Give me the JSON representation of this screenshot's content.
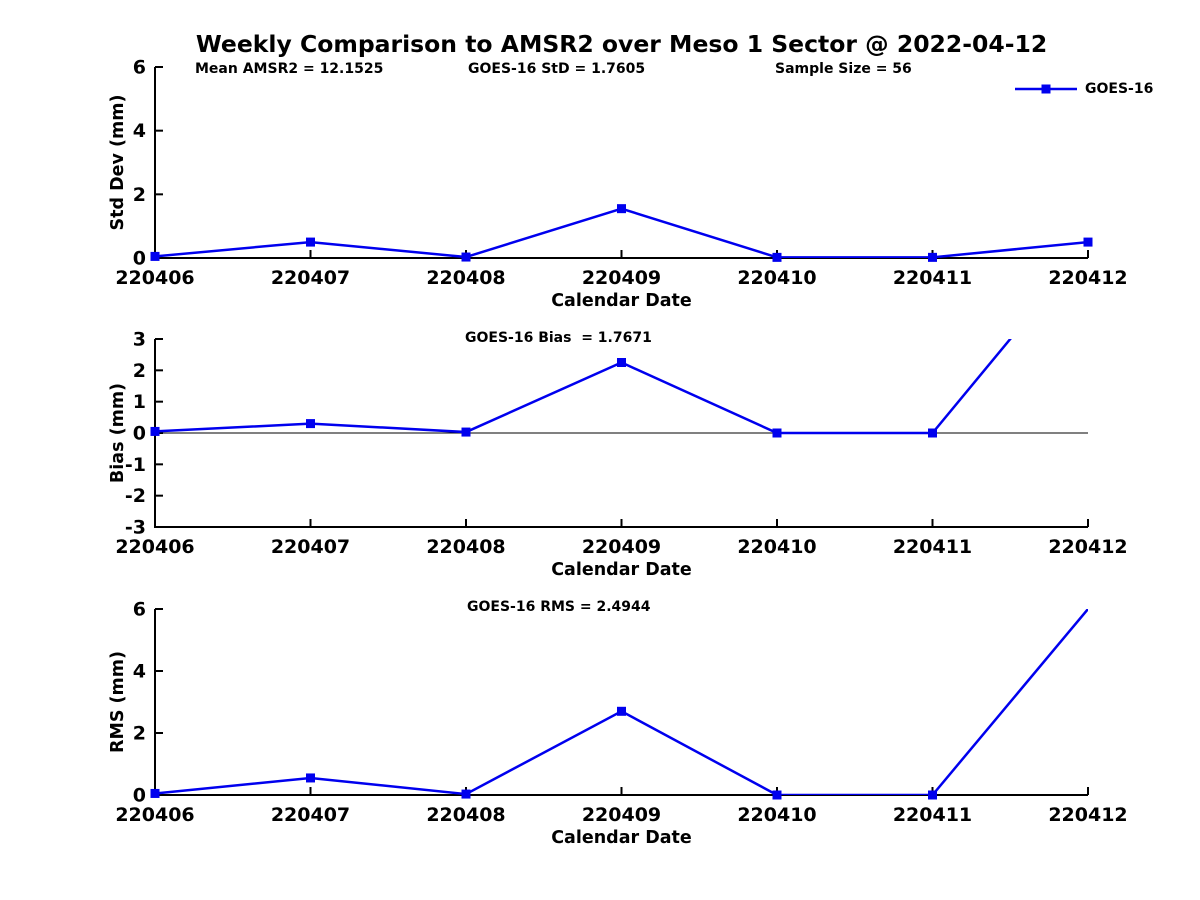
{
  "title": "Weekly Comparison to AMSR2 over Meso 1 Sector @ 2022-04-12",
  "legend": {
    "label": "GOES-16",
    "series_color": "#0000ee"
  },
  "colors": {
    "line": "#0000ee",
    "axis": "#000000",
    "text": "#000000",
    "background": "#ffffff"
  },
  "chart_data": [
    {
      "type": "line",
      "panel": "std-dev",
      "annotations": [
        "Mean AMSR2 = 12.1525",
        "GOES-16 StD = 1.7605",
        "Sample Size = 56"
      ],
      "ylabel": "Std Dev (mm)",
      "xlabel": "Calendar Date",
      "categories": [
        "220406",
        "220407",
        "220408",
        "220409",
        "220410",
        "220411",
        "220412"
      ],
      "series": [
        {
          "name": "GOES-16",
          "color": "#0000ee",
          "values": [
            0.05,
            0.5,
            0.03,
            1.55,
            0.02,
            0.02,
            0.5
          ]
        }
      ],
      "ylim": [
        0,
        6
      ],
      "yticks": [
        0,
        2,
        4,
        6
      ],
      "zero_line": false,
      "grid": false,
      "legend_position": "top-right"
    },
    {
      "type": "line",
      "panel": "bias",
      "annotations": [
        "GOES-16 Bias  = 1.7671"
      ],
      "ylabel": "Bias (mm)",
      "xlabel": "Calendar Date",
      "categories": [
        "220406",
        "220407",
        "220408",
        "220409",
        "220410",
        "220411",
        "220412"
      ],
      "series": [
        {
          "name": "GOES-16",
          "color": "#0000ee",
          "values": [
            0.05,
            0.3,
            0.03,
            2.25,
            0.0,
            0.0,
            6.0
          ]
        }
      ],
      "ylim": [
        -3,
        3
      ],
      "yticks": [
        -3,
        -2,
        -1,
        0,
        1,
        2,
        3
      ],
      "zero_line": true,
      "grid": false,
      "note": "last point exceeds y-range and is clipped at top"
    },
    {
      "type": "line",
      "panel": "rms",
      "annotations": [
        "GOES-16 RMS = 2.4944"
      ],
      "ylabel": "RMS (mm)",
      "xlabel": "Calendar Date",
      "categories": [
        "220406",
        "220407",
        "220408",
        "220409",
        "220410",
        "220411",
        "220412"
      ],
      "series": [
        {
          "name": "GOES-16",
          "color": "#0000ee",
          "values": [
            0.05,
            0.55,
            0.03,
            2.7,
            0.0,
            0.0,
            6.0
          ]
        }
      ],
      "ylim": [
        0,
        6
      ],
      "yticks": [
        0,
        2,
        4,
        6
      ],
      "zero_line": false,
      "grid": false,
      "note": "last point reaches top of y-range; marker clipped"
    }
  ]
}
